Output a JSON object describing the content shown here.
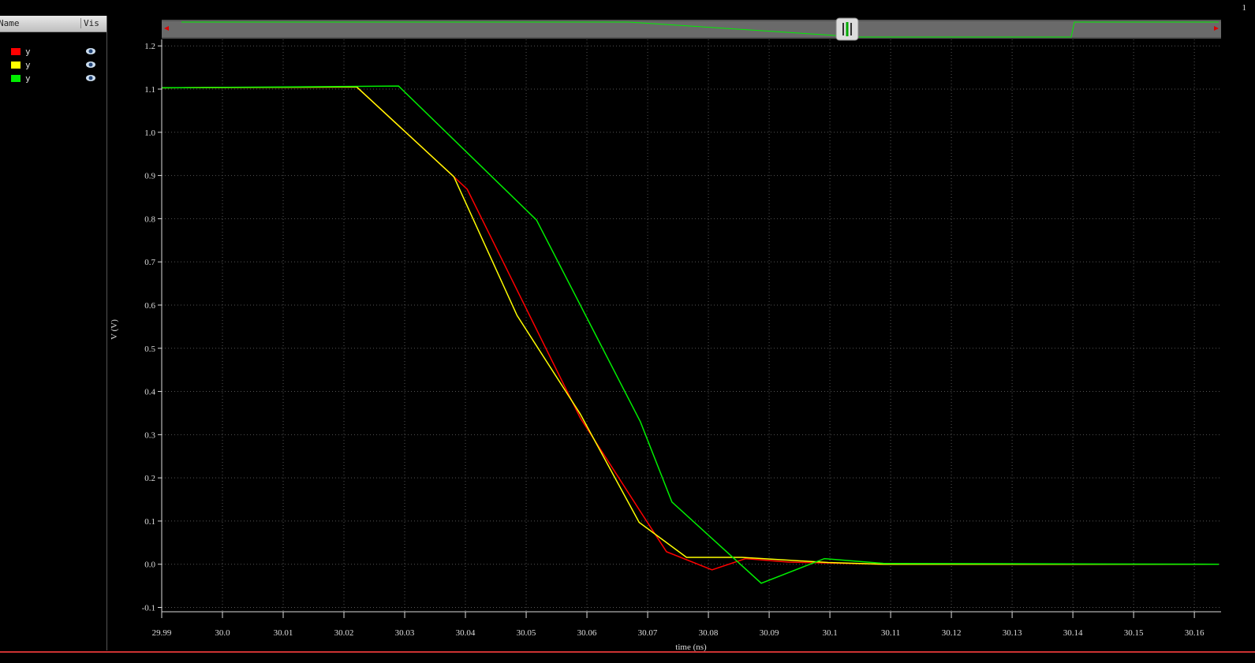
{
  "panel": {
    "headers": [
      "Name",
      "Vis"
    ]
  },
  "window_number": "1",
  "chart_data": {
    "type": "line",
    "x_label": "time (ns)",
    "y_label": "V (V)",
    "xlim": [
      29.99,
      30.1644
    ],
    "ylim": [
      -0.11,
      1.215
    ],
    "xticks": [
      29.99,
      {
        "value": 30,
        "label": "30.0"
      },
      30.01,
      30.02,
      30.03,
      30.04,
      30.05,
      30.06,
      30.07,
      30.08,
      30.09,
      {
        "value": 30.1,
        "label": "30.1"
      },
      30.11,
      30.12,
      30.13,
      30.14,
      30.15,
      30.16
    ],
    "yticks": [
      1.2,
      1.1,
      {
        "value": 1,
        "label": "1.0"
      },
      0.9,
      0.8,
      0.7,
      0.6,
      0.5,
      0.4,
      0.3,
      0.2,
      0.1,
      {
        "value": 0,
        "label": "0.0"
      },
      -0.1
    ],
    "grid": true,
    "series": [
      {
        "name": "y",
        "color": "#ff0000",
        "x": [
          29.99,
          30.0221,
          30.0381,
          30.0403,
          30.0589,
          30.0689,
          30.0731,
          30.0806,
          30.0861,
          30.0932,
          30.1088,
          30.164
        ],
        "values": [
          1.103,
          1.105,
          0.897,
          0.868,
          0.339,
          0.12,
          0.029,
          -0.013,
          0.013,
          0.005,
          0,
          0
        ]
      },
      {
        "name": "y",
        "color": "#ffff00",
        "x": [
          29.99,
          30.0221,
          30.0381,
          30.0485,
          30.0589,
          30.0686,
          30.0764,
          30.0855,
          30.0997,
          30.1088,
          30.164
        ],
        "values": [
          1.103,
          1.105,
          0.897,
          0.576,
          0.348,
          0.097,
          0.016,
          0.016,
          0.004,
          0,
          0
        ]
      },
      {
        "name": "y",
        "color": "#00ee00",
        "x": [
          29.99,
          30.029,
          30.0517,
          30.0688,
          30.074,
          30.0887,
          30.0991,
          30.1088,
          30.164
        ],
        "values": [
          1.103,
          1.107,
          0.797,
          0.33,
          0.144,
          -0.044,
          0.013,
          0.002,
          0
        ]
      }
    ]
  }
}
